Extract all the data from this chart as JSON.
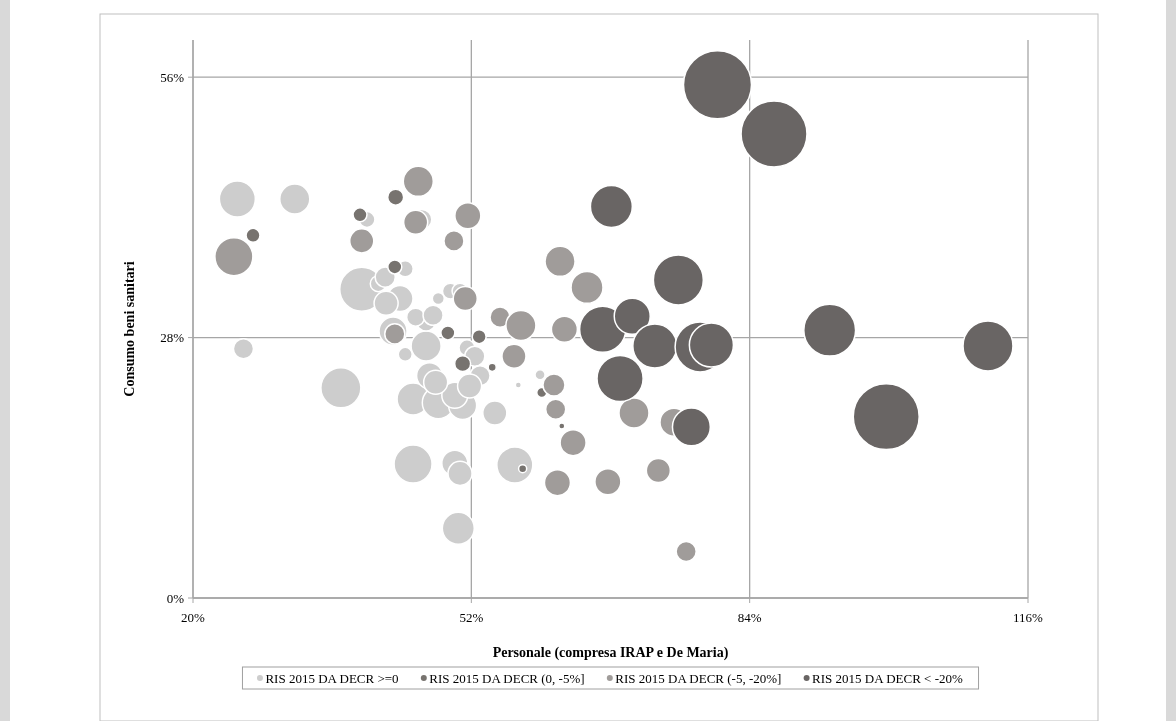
{
  "chart_data": {
    "type": "bubble",
    "xlabel": "Personale (compresa IRAP e De Maria)",
    "ylabel": "Consumo beni sanitari",
    "xlim": [
      20,
      116
    ],
    "xticks": [
      {
        "value": 20,
        "label": "20%"
      },
      {
        "value": 52,
        "label": "52%"
      },
      {
        "value": 84,
        "label": "84%"
      },
      {
        "value": 116,
        "label": "116%"
      }
    ],
    "ylim": [
      0,
      60
    ],
    "yticks": [
      {
        "value": 0,
        "label": "0%"
      },
      {
        "value": 28,
        "label": "28%"
      },
      {
        "value": 56,
        "label": "56%"
      }
    ],
    "grid": true,
    "legend": "bottom",
    "series": [
      {
        "name": "RIS 2015 DA DECR >=0",
        "color": "#cdcdcd",
        "x": [
          25.1,
          31.7,
          25.8,
          39.4,
          37.0,
          43.8,
          43.0,
          46.8,
          45.3,
          48.2,
          51.0,
          50.1,
          47.2,
          54.7,
          45.3,
          50.1,
          50.7,
          50.5,
          57.0,
          51.5,
          52.4,
          46.8,
          45.6,
          41.3,
          42.2,
          42.1,
          44.4,
          48.2,
          47.6,
          49.6,
          50.7,
          59.9,
          57.4,
          53.0,
          51.8,
          46.3,
          40.0,
          44.4,
          47.9
        ],
        "values": [
          42.9,
          42.9,
          26.8,
          33.2,
          22.6,
          32.2,
          28.7,
          27.1,
          21.4,
          21.0,
          20.7,
          21.8,
          23.9,
          19.9,
          14.4,
          14.5,
          13.4,
          7.5,
          14.3,
          26.9,
          26.0,
          29.8,
          30.2,
          33.8,
          31.7,
          34.5,
          35.4,
          32.2,
          30.4,
          33.0,
          33.0,
          24.0,
          22.9,
          23.9,
          22.8,
          40.7,
          40.7,
          26.2,
          23.2
        ],
        "sizes": [
          0.28,
          0.195,
          0.087,
          0.419,
          0.346,
          0.146,
          0.17,
          0.195,
          0.221,
          0.221,
          0.17,
          0.146,
          0.146,
          0.125,
          0.312,
          0.146,
          0.125,
          0.221,
          0.28,
          0.055,
          0.087,
          0.087,
          0.07,
          0.055,
          0.125,
          0.087,
          0.055,
          0.031,
          0.087,
          0.055,
          0.055,
          0.022,
          0.008,
          0.087,
          0.125,
          0.087,
          0.055,
          0.042,
          0.125
        ]
      },
      {
        "name": "RIS 2015 DA DECR (0, -5%]",
        "color": "#77736f",
        "x": [
          26.9,
          43.3,
          39.2,
          43.2,
          49.3,
          52.9,
          51.0,
          54.4,
          57.9,
          60.1,
          62.4
        ],
        "values": [
          39.0,
          43.1,
          41.2,
          35.6,
          28.5,
          28.1,
          25.2,
          24.8,
          13.9,
          22.1,
          18.5
        ],
        "sizes": [
          0.042,
          0.055,
          0.042,
          0.042,
          0.042,
          0.042,
          0.055,
          0.014,
          0.014,
          0.022,
          0.008
        ]
      },
      {
        "name": "RIS 2015 DA DECR (-5, -20%]",
        "color": "#a09c9a",
        "x": [
          45.9,
          45.6,
          39.4,
          24.7,
          50.0,
          51.6,
          43.2,
          51.3,
          55.3,
          57.7,
          62.2,
          65.3,
          62.7,
          56.9,
          61.5,
          61.7,
          63.7,
          61.9,
          67.7,
          70.7,
          73.5,
          76.7,
          75.3
        ],
        "values": [
          44.8,
          40.4,
          38.4,
          36.7,
          38.4,
          41.1,
          28.4,
          32.2,
          30.2,
          29.3,
          36.2,
          33.4,
          28.9,
          26.0,
          22.9,
          20.3,
          16.7,
          12.4,
          12.5,
          19.9,
          13.7,
          5.0,
          18.9
        ],
        "sizes": [
          0.195,
          0.125,
          0.125,
          0.312,
          0.087,
          0.146,
          0.087,
          0.125,
          0.087,
          0.195,
          0.195,
          0.221,
          0.146,
          0.125,
          0.105,
          0.087,
          0.146,
          0.146,
          0.146,
          0.195,
          0.125,
          0.087,
          0.17
        ]
      },
      {
        "name": "RIS 2015 DA DECR < -20%",
        "color": "#696564",
        "x": [
          80.3,
          86.8,
          68.1,
          75.8,
          67.1,
          70.5,
          73.1,
          78.3,
          79.6,
          69.1,
          77.3,
          93.2,
          99.7,
          111.4
        ],
        "values": [
          55.2,
          49.9,
          42.1,
          34.2,
          28.9,
          30.3,
          27.1,
          27.0,
          27.2,
          23.6,
          18.4,
          28.8,
          19.5,
          27.1
        ],
        "sizes": [
          1,
          0.94,
          0.38,
          0.54,
          0.46,
          0.28,
          0.42,
          0.54,
          0.42,
          0.46,
          0.31,
          0.58,
          0.94,
          0.54
        ]
      }
    ]
  }
}
